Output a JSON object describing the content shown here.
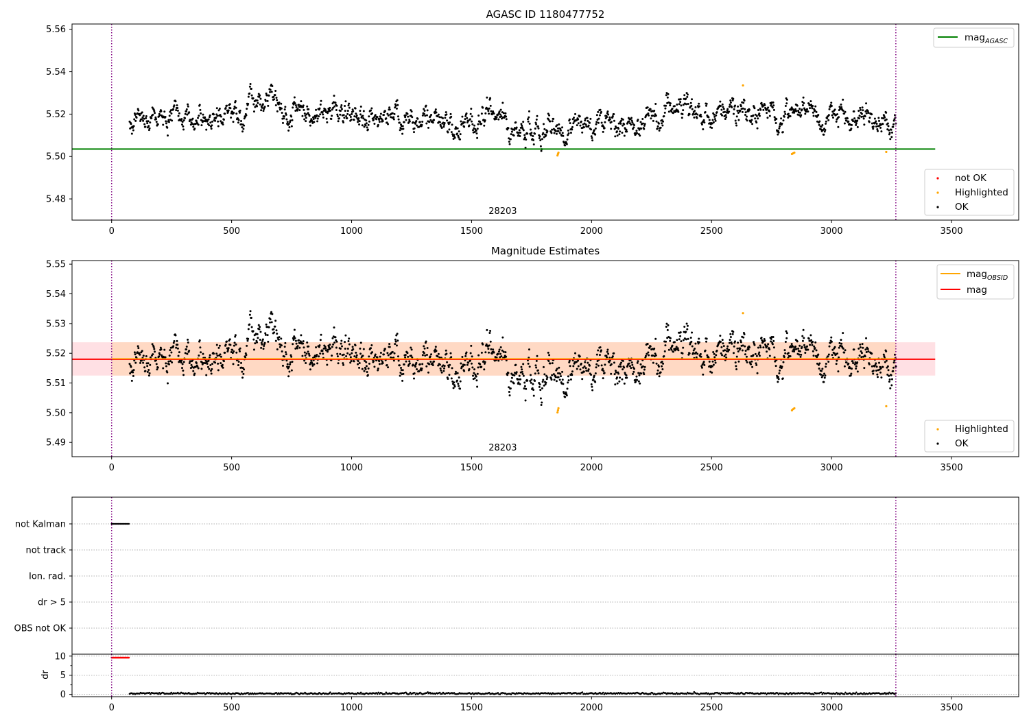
{
  "chart_data": [
    {
      "type": "scatter",
      "title": "AGASC ID 1180477752",
      "xlim": [
        -165,
        3780
      ],
      "ylim": [
        5.47,
        5.5625
      ],
      "x_ticks": [
        0,
        500,
        1000,
        1500,
        2000,
        2500,
        3000,
        3500
      ],
      "y_ticks": [
        5.48,
        5.5,
        5.52,
        5.54,
        5.56
      ],
      "y_tick_decimals": 2,
      "obsid_label": "28203",
      "obsid_label_x": 1630,
      "vlines_x": [
        0,
        3268
      ],
      "hline": {
        "name": "mag_AGASC",
        "y": 5.5035,
        "x_range": [
          -165,
          3432
        ],
        "color": "#008000"
      },
      "data_x_range": [
        75,
        3268
      ],
      "data_mean": 5.518,
      "highlighted_points": [
        {
          "x": 1858,
          "y": 5.5005
        },
        {
          "x": 1860,
          "y": 5.5012
        },
        {
          "x": 1862,
          "y": 5.5018
        },
        {
          "x": 2835,
          "y": 5.5012
        },
        {
          "x": 2840,
          "y": 5.5015
        },
        {
          "x": 2845,
          "y": 5.5018
        },
        {
          "x": 2631,
          "y": 5.5335
        },
        {
          "x": 3228,
          "y": 5.5022
        }
      ],
      "legend_top": {
        "entries": [
          {
            "label": "mag",
            "sub": "AGASC",
            "color": "#008000"
          }
        ],
        "placement": "top-right"
      },
      "legend_bottom": {
        "entries": [
          {
            "label": "not OK",
            "color": "#ff0000"
          },
          {
            "label": "Highlighted",
            "color": "#ffa500"
          },
          {
            "label": "OK",
            "color": "#000000"
          }
        ],
        "placement": "bottom-right"
      }
    },
    {
      "type": "scatter",
      "title": "Magnitude Estimates",
      "xlim": [
        -165,
        3780
      ],
      "ylim": [
        5.4852,
        5.5512
      ],
      "x_ticks": [
        0,
        500,
        1000,
        1500,
        2000,
        2500,
        3000,
        3500
      ],
      "y_ticks": [
        5.49,
        5.5,
        5.51,
        5.52,
        5.53,
        5.54,
        5.55
      ],
      "y_tick_decimals": 2,
      "obsid_label": "28203",
      "obsid_label_x": 1630,
      "vlines_x": [
        0,
        3268
      ],
      "mag_line": {
        "name": "mag",
        "y": 5.518,
        "x_range": [
          -165,
          3432
        ],
        "color": "#ff0000"
      },
      "mag_band": {
        "y_range": [
          5.5125,
          5.5237
        ],
        "x_range": [
          -165,
          3432
        ],
        "color": "#ffe0e4"
      },
      "obsid_line": {
        "name": "mag_OBSID",
        "y": 5.518,
        "x_range": [
          0,
          3268
        ],
        "color": "#ffa500"
      },
      "obsid_band": {
        "y_range": [
          5.5125,
          5.5237
        ],
        "x_range": [
          0,
          3268
        ],
        "color": "#ffd9c4"
      },
      "data_x_range": [
        75,
        3268
      ],
      "data_mean": 5.518,
      "highlighted_points": [
        {
          "x": 1858,
          "y": 5.5001
        },
        {
          "x": 1860,
          "y": 5.5008
        },
        {
          "x": 1862,
          "y": 5.5015
        },
        {
          "x": 2835,
          "y": 5.5008
        },
        {
          "x": 2840,
          "y": 5.5012
        },
        {
          "x": 2845,
          "y": 5.5015
        },
        {
          "x": 2631,
          "y": 5.5335
        },
        {
          "x": 3228,
          "y": 5.5022
        }
      ],
      "legend_top": {
        "entries": [
          {
            "label": "mag",
            "sub": "OBSID",
            "color": "#ffa500"
          },
          {
            "label": "mag",
            "sub": "",
            "color": "#ff0000"
          }
        ],
        "placement": "top-right"
      },
      "legend_bottom": {
        "entries": [
          {
            "label": "Highlighted",
            "color": "#ffa500"
          },
          {
            "label": "OK",
            "color": "#000000"
          }
        ],
        "placement": "bottom-right"
      }
    },
    {
      "type": "scatter",
      "title": "",
      "xlim": [
        -165,
        3780
      ],
      "flag_rows": [
        "not Kalman",
        "not track",
        "Ion. rad.",
        "dr > 5",
        "OBS not OK"
      ],
      "flag_segments": [
        {
          "row": "not Kalman",
          "x_range": [
            0,
            72
          ],
          "color": "#000000"
        }
      ],
      "vlines_x": [
        0,
        3268
      ]
    },
    {
      "type": "scatter",
      "title": "",
      "xlim": [
        -165,
        3780
      ],
      "ylim": [
        -0.6,
        10.5
      ],
      "ylabel": "dr",
      "x_ticks": [
        0,
        500,
        1000,
        1500,
        2000,
        2500,
        3000,
        3500
      ],
      "y_ticks": [
        0,
        5,
        10
      ],
      "y_tick_decimals": 0,
      "vlines_x": [
        0,
        3268
      ],
      "red_segment": {
        "x_range": [
          0,
          72
        ],
        "y": 9.6,
        "color": "#ff0000"
      },
      "data_x_range": [
        75,
        3268
      ],
      "dr_mean": 0.25
    }
  ]
}
